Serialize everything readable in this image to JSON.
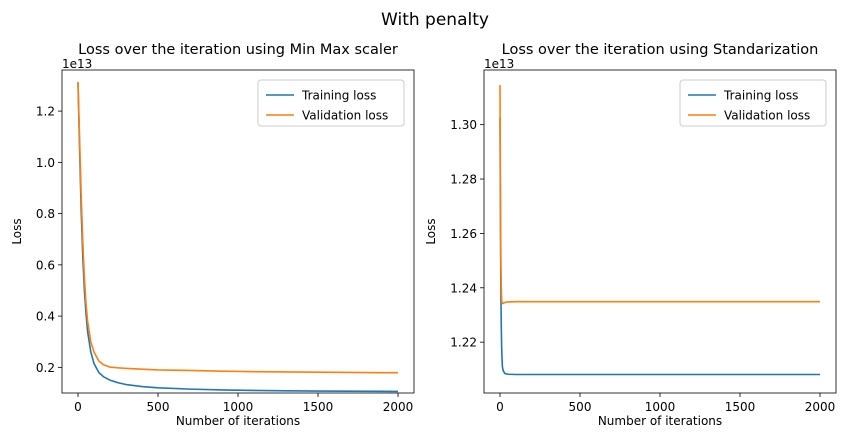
{
  "figure": {
    "suptitle": "With penalty",
    "suptitle_color": "#ff0000"
  },
  "colors": {
    "training": "#1f77b4",
    "validation": "#ff7f0e"
  },
  "chart_data": [
    {
      "type": "line",
      "title": "Loss over the iteration using Min Max scaler",
      "xlabel": "Number of iterations",
      "ylabel": "Loss",
      "offset_text": "1e13",
      "xlim": [
        -100,
        2100
      ],
      "ylim": [
        0.0999,
        1.3604
      ],
      "xticks": [
        0,
        500,
        1000,
        1500,
        2000
      ],
      "xtick_labels": [
        "0",
        "500",
        "1000",
        "1500",
        "2000"
      ],
      "yticks": [
        0.2,
        0.4,
        0.6,
        0.8,
        1.0,
        1.2
      ],
      "ytick_labels": [
        "0.2",
        "0.4",
        "0.6",
        "0.8",
        "1.0",
        "1.2"
      ],
      "legend_position": "upper right",
      "series": [
        {
          "name": "Training loss",
          "color_key": "training",
          "x": [
            0,
            10,
            20,
            30,
            40,
            50,
            60,
            80,
            100,
            130,
            160,
            200,
            250,
            300,
            400,
            500,
            700,
            900,
            1100,
            1300,
            1500,
            1700,
            2000
          ],
          "y": [
            1.31,
            1.05,
            0.81,
            0.63,
            0.5,
            0.41,
            0.34,
            0.26,
            0.215,
            0.18,
            0.163,
            0.15,
            0.14,
            0.133,
            0.125,
            0.12,
            0.115,
            0.112,
            0.11,
            0.1085,
            0.1075,
            0.107,
            0.106
          ]
        },
        {
          "name": "Validation loss",
          "color_key": "validation",
          "x": [
            0,
            10,
            20,
            30,
            40,
            50,
            60,
            80,
            100,
            130,
            160,
            200,
            250,
            300,
            400,
            500,
            700,
            900,
            1100,
            1300,
            1500,
            1700,
            2000
          ],
          "y": [
            1.314,
            1.09,
            0.87,
            0.69,
            0.55,
            0.45,
            0.38,
            0.3,
            0.26,
            0.225,
            0.21,
            0.201,
            0.198,
            0.196,
            0.193,
            0.19,
            0.188,
            0.185,
            0.183,
            0.182,
            0.181,
            0.18,
            0.179
          ]
        }
      ]
    },
    {
      "type": "line",
      "title": "Loss over the iteration using Standarization",
      "xlabel": "Number of iterations",
      "ylabel": "Loss",
      "offset_text": "1e13",
      "xlim": [
        -100,
        2100
      ],
      "ylim": [
        1.2013,
        1.3201
      ],
      "xticks": [
        0,
        500,
        1000,
        1500,
        2000
      ],
      "xtick_labels": [
        "0",
        "500",
        "1000",
        "1500",
        "2000"
      ],
      "yticks": [
        1.22,
        1.24,
        1.26,
        1.28,
        1.3
      ],
      "ytick_labels": [
        "1.22",
        "1.24",
        "1.26",
        "1.28",
        "1.30"
      ],
      "legend_position": "upper right",
      "series": [
        {
          "name": "Training loss",
          "color_key": "training",
          "x": [
            0,
            2,
            4,
            6,
            8,
            10,
            12,
            15,
            20,
            30,
            50,
            100,
            2000
          ],
          "y": [
            1.3025,
            1.275,
            1.252,
            1.236,
            1.226,
            1.219,
            1.215,
            1.211,
            1.2095,
            1.2085,
            1.2082,
            1.2081,
            1.2081
          ]
        },
        {
          "name": "Validation loss",
          "color_key": "validation",
          "x": [
            0,
            2,
            4,
            6,
            8,
            10,
            13,
            16,
            20,
            30,
            50,
            100,
            2000
          ],
          "y": [
            1.3146,
            1.285,
            1.262,
            1.248,
            1.24,
            1.236,
            1.2345,
            1.2342,
            1.2343,
            1.2346,
            1.2348,
            1.2349,
            1.2349
          ]
        }
      ]
    }
  ]
}
